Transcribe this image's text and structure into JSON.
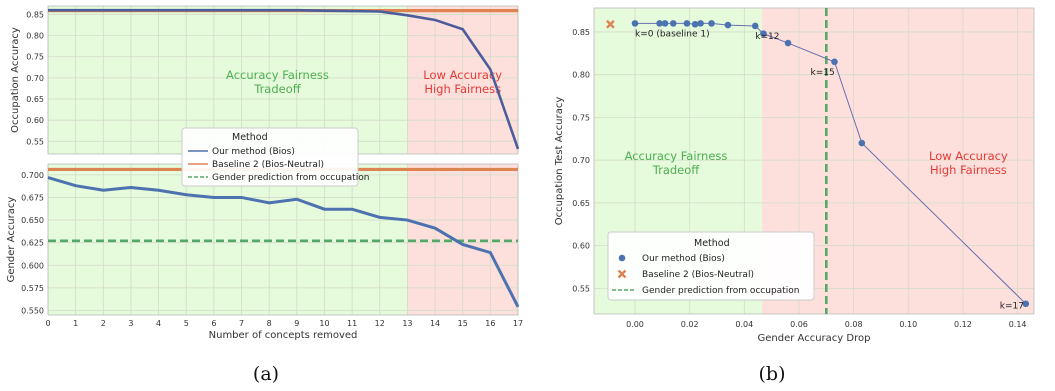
{
  "chart_data": [
    {
      "type": "line",
      "panel": "a-top",
      "x": [
        0,
        1,
        2,
        3,
        4,
        5,
        6,
        7,
        8,
        9,
        10,
        11,
        12,
        13,
        14,
        15,
        16,
        17
      ],
      "xlim": [
        0,
        17
      ],
      "ylim": [
        0.52,
        0.87
      ],
      "ylabel": "Occupation Accuracy",
      "yticks": [
        0.55,
        0.6,
        0.65,
        0.7,
        0.75,
        0.8,
        0.85
      ],
      "series": [
        {
          "name": "Our method (Bios)",
          "color": "#4c5d9c",
          "values": [
            0.86,
            0.86,
            0.86,
            0.86,
            0.86,
            0.86,
            0.86,
            0.86,
            0.86,
            0.86,
            0.859,
            0.858,
            0.857,
            0.848,
            0.837,
            0.815,
            0.72,
            0.532
          ]
        },
        {
          "name": "Baseline 2 (Bios-Neutral)",
          "color": "#dd8452",
          "constant": 0.859
        }
      ],
      "regions": [
        {
          "label_lines": [
            "Accuracy Fairness",
            "Tradeoff"
          ],
          "from": 0,
          "to": 13,
          "color": "#e6fadc",
          "text_color": "#4caf50"
        },
        {
          "label_lines": [
            "Low Accuracy",
            "High Fairness"
          ],
          "from": 13,
          "to": 17,
          "color": "#fde0dc",
          "text_color": "#e53935"
        }
      ]
    },
    {
      "type": "line",
      "panel": "a-bottom",
      "x": [
        0,
        1,
        2,
        3,
        4,
        5,
        6,
        7,
        8,
        9,
        10,
        11,
        12,
        13,
        14,
        15,
        16,
        17
      ],
      "xlim": [
        0,
        17
      ],
      "ylim": [
        0.545,
        0.712
      ],
      "xlabel": "Number of concepts removed",
      "ylabel": "Gender Accuracy",
      "xticks": [
        0,
        1,
        2,
        3,
        4,
        5,
        6,
        7,
        8,
        9,
        10,
        11,
        12,
        13,
        14,
        15,
        16,
        17
      ],
      "yticks": [
        0.55,
        0.575,
        0.6,
        0.625,
        0.65,
        0.675,
        0.7
      ],
      "series": [
        {
          "name": "Our method (Bios)",
          "color": "#4c72b0",
          "values": [
            0.697,
            0.688,
            0.683,
            0.686,
            0.683,
            0.678,
            0.675,
            0.675,
            0.669,
            0.673,
            0.662,
            0.662,
            0.653,
            0.65,
            0.641,
            0.623,
            0.614,
            0.554
          ]
        },
        {
          "name": "Baseline 2 (Bios-Neutral)",
          "color": "#dd8452",
          "constant": 0.706
        },
        {
          "name": "Gender prediction from occupation",
          "color": "#55a868",
          "dashed": true,
          "constant": 0.627
        }
      ],
      "regions": [
        {
          "from": 0,
          "to": 13,
          "color": "#e6fadc"
        },
        {
          "from": 13,
          "to": 17,
          "color": "#fde0dc"
        }
      ]
    },
    {
      "type": "scatter",
      "panel": "b",
      "xlim": [
        -0.015,
        0.146
      ],
      "ylim": [
        0.52,
        0.878
      ],
      "xlabel": "Gender Accuracy Drop",
      "ylabel": "Occupation Test Accuracy",
      "xticks": [
        0.0,
        0.02,
        0.04,
        0.06,
        0.08,
        0.1,
        0.12,
        0.14
      ],
      "yticks": [
        0.55,
        0.6,
        0.65,
        0.7,
        0.75,
        0.8,
        0.85
      ],
      "series": [
        {
          "name": "Our method (Bios)",
          "color": "#4c72b0",
          "line_color": "#6a6fb0",
          "x": [
            0.0,
            0.009,
            0.011,
            0.014,
            0.019,
            0.022,
            0.024,
            0.028,
            0.034,
            0.044,
            0.047,
            0.056,
            0.073,
            0.083,
            0.143
          ],
          "y": [
            0.86,
            0.86,
            0.86,
            0.86,
            0.86,
            0.859,
            0.86,
            0.86,
            0.858,
            0.857,
            0.848,
            0.837,
            0.815,
            0.72,
            0.532
          ]
        },
        {
          "name": "Baseline 2 (Bios-Neutral)",
          "color": "#dd8452",
          "marker": "x",
          "x": [
            -0.009
          ],
          "y": [
            0.859
          ]
        },
        {
          "name": "Gender prediction from occupation",
          "color": "#55a868",
          "dashed": true,
          "vertical_x": 0.07
        }
      ],
      "point_labels": [
        {
          "text": "k=0 (baseline 1)",
          "x": 0.0,
          "y": 0.86
        },
        {
          "text": "k=12",
          "x": 0.044,
          "y": 0.857
        },
        {
          "text": "k=15",
          "x": 0.073,
          "y": 0.815
        },
        {
          "text": "k=17",
          "x": 0.143,
          "y": 0.532
        }
      ],
      "regions": [
        {
          "label_lines": [
            "Accuracy Fairness",
            "Tradeoff"
          ],
          "from": -0.015,
          "to": 0.0465,
          "color": "#e6fadc",
          "text_color": "#4caf50"
        },
        {
          "label_lines": [
            "Low Accuracy",
            "High Fairness"
          ],
          "from": 0.0465,
          "to": 0.146,
          "color": "#fde0dc",
          "text_color": "#e53935"
        }
      ]
    }
  ],
  "legends": {
    "a": {
      "title": "Method",
      "items": [
        "Our method (Bios)",
        "Baseline 2 (Bios-Neutral)",
        "Gender prediction from occupation"
      ]
    },
    "b": {
      "title": "Method",
      "items": [
        "Our method (Bios)",
        "Baseline 2 (Bios-Neutral)",
        "Gender prediction from occupation"
      ]
    }
  },
  "captions": {
    "a": "(a)",
    "b": "(b)"
  }
}
